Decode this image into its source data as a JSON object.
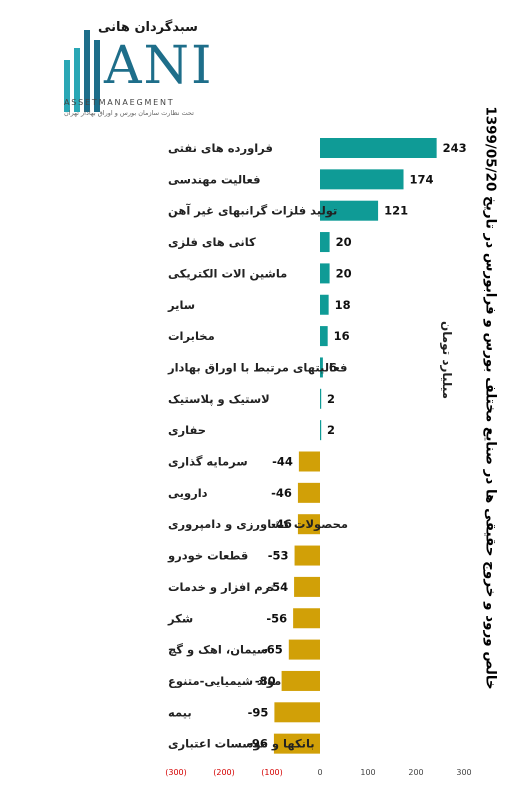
{
  "logo": {
    "brand": "سبدگردان هانی",
    "letters": "ANI",
    "subtitle": "ASSETMANAEGMENT",
    "tagline": "تحت نظارت سازمان بورس و اوراق بهادار تهران"
  },
  "colors": {
    "positive": "#0f9b96",
    "negative": "#d1a007",
    "negative_tick": "#d40000"
  },
  "chart_data": {
    "type": "bar",
    "orientation": "horizontal",
    "title": "خالص ورود و خروج حقیقی ها در صنایع مختلف بورس و فرابورس در تاریخ 1399/05/20",
    "unit_label": "میلیارد تومان",
    "categories": [
      "فراورده های نفتی",
      "فعالیت مهندسی",
      "تولید فلزات گرانبهای غیر آهن",
      "کانی های فلزی",
      "ماشین الات الکتریکی",
      "سایر",
      "مخابرات",
      "فعالیتهای مرتبط با اوراق بهادار",
      "لاستیک و پلاستیک",
      "حفاری",
      "سرمایه گذاری",
      "دارویی",
      "محصولات کشاورزی و دامپروری",
      "قطعات خودرو",
      "نرم افزار و خدمات",
      "شکر",
      "سیمان، اهک و گچ",
      "مواد شیمیایی-متنوع",
      "بیمه",
      "بانکها و موسسات اعتباری"
    ],
    "values": [
      243,
      174,
      121,
      20,
      20,
      18,
      16,
      6,
      2,
      2,
      -44,
      -46,
      -46,
      -53,
      -54,
      -56,
      -65,
      -80,
      -95,
      -96
    ],
    "value_labels": [
      "243",
      "174",
      "121",
      "20",
      "20",
      "18",
      "16",
      "6",
      "2",
      "2",
      "-44",
      "-46",
      "-46",
      "-53",
      "-54",
      "-56",
      "-65",
      "-80",
      "-95",
      "-96"
    ],
    "xlim": [
      -300,
      300
    ],
    "xticks": [
      -300,
      -200,
      -100,
      0,
      100,
      200,
      300
    ],
    "xtick_labels": [
      "(300)",
      "(200)",
      "(100)",
      "0",
      "100",
      "200",
      "300"
    ],
    "grid": false,
    "legend": "none"
  }
}
